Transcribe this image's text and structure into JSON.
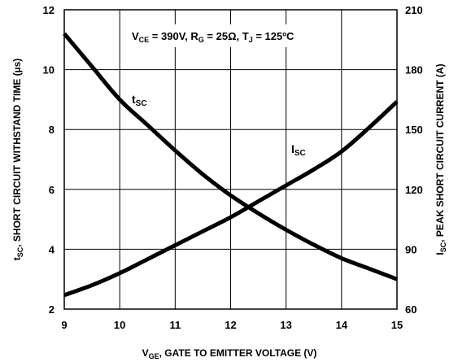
{
  "chart_data": {
    "type": "line",
    "x_ticks": [
      "9",
      "10",
      "11",
      "12",
      "13",
      "14",
      "15"
    ],
    "xlim": [
      9,
      15
    ],
    "xlabel": {
      "main": "V",
      "sub": "GE",
      "rest": ", GATE TO EMITTER VOLTAGE (V)"
    },
    "y_left": {
      "ticks": [
        "2",
        "4",
        "6",
        "8",
        "10",
        "12"
      ],
      "lim": [
        2,
        12
      ],
      "label": {
        "main": "t",
        "sub": "SC",
        "rest": ", SHORT CIRCUIT WITHSTAND TIME (µs)"
      }
    },
    "y_right": {
      "ticks": [
        "60",
        "90",
        "120",
        "150",
        "180",
        "210"
      ],
      "lim": [
        60,
        210
      ],
      "label": {
        "main": "I",
        "sub": "SC",
        "rest": ", PEAK SHORT CIRCUIT CURRENT (A)"
      }
    },
    "grid": true,
    "conditions": {
      "p1": "V",
      "p1sub": "CE",
      "p2": " = 390V, R",
      "p2sub": "G",
      "p3": " = 25Ω, T",
      "p3sub": "J",
      "p4": " = 125ºC"
    },
    "series": [
      {
        "name": "tSC",
        "label_main": "t",
        "label_sub": "SC",
        "axis": "left",
        "x": [
          9,
          9.5,
          10,
          10.5,
          11,
          11.5,
          12,
          12.5,
          13,
          13.5,
          14,
          14.5,
          15
        ],
        "y": [
          11.2,
          10.1,
          9.0,
          8.15,
          7.3,
          6.5,
          5.8,
          5.2,
          4.65,
          4.15,
          3.7,
          3.35,
          3.0
        ]
      },
      {
        "name": "ISC",
        "label_main": "I",
        "label_sub": "SC",
        "axis": "right",
        "x": [
          9,
          9.5,
          10,
          10.5,
          11,
          11.5,
          12,
          12.5,
          13,
          13.5,
          14,
          14.5,
          15
        ],
        "y": [
          67,
          72,
          78,
          85,
          92,
          99,
          106,
          114,
          122,
          130,
          139,
          151,
          164
        ]
      }
    ]
  }
}
